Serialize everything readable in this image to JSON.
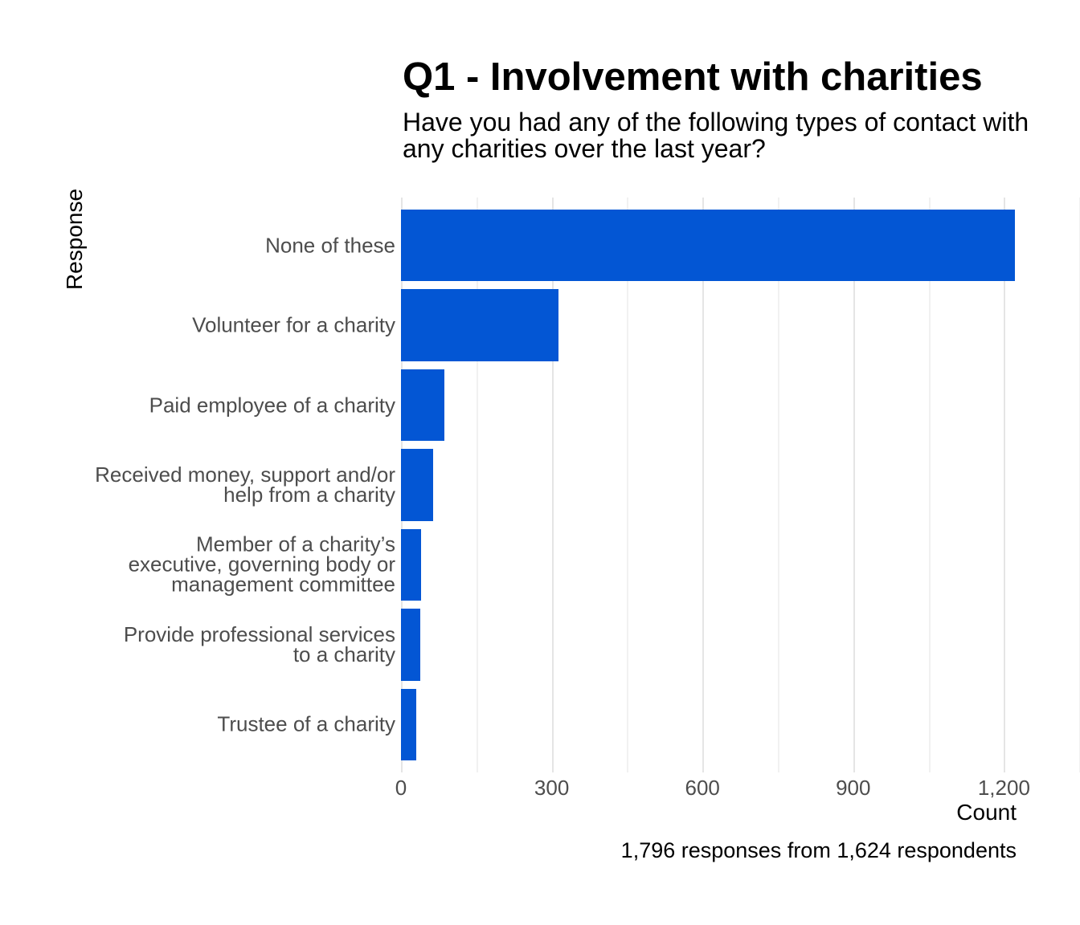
{
  "header": {
    "title": "Q1 - Involvement with charities",
    "subtitle_lines": [
      "Have you had any of the following types of contact with",
      "any charities over the last year?"
    ]
  },
  "chart_data": {
    "type": "bar",
    "orientation": "horizontal",
    "title": "Q1 - Involvement with charities",
    "subtitle": "Have you had any of the following types of contact with any charities over the last year?",
    "xlabel": "Count",
    "ylabel": "Response",
    "caption": "1,796 responses from 1,624 respondents",
    "categories": [
      "None of these",
      "Volunteer for a charity",
      "Paid employee of a charity",
      "Received money, support and/or help from a charity",
      "Member of a charity’s executive, governing body or management committee",
      "Provide professional services to a charity",
      "Trustee of a charity"
    ],
    "categories_lines": [
      [
        "None of these"
      ],
      [
        "Volunteer for a charity"
      ],
      [
        "Paid employee of a charity"
      ],
      [
        "Received money, support and/or",
        "help from a charity"
      ],
      [
        "Member of a charity’s",
        "executive, governing body or",
        "management committee"
      ],
      [
        "Provide professional services",
        "to a charity"
      ],
      [
        "Trustee of a charity"
      ]
    ],
    "values": [
      1222,
      314,
      87,
      64,
      40,
      38,
      31
    ],
    "xlim": [
      0,
      1351
    ],
    "x_major_ticks": [
      0,
      300,
      600,
      900,
      1200
    ],
    "x_tick_labels": [
      "0",
      "300",
      "600",
      "900",
      "1,200"
    ],
    "x_minor_ticks": [
      150,
      450,
      750,
      1050,
      1350
    ],
    "bar_color": "#0356D4",
    "grid": true,
    "legend_position": "none",
    "background": "#FFFFFF",
    "tick_label_color": "#4D4D4D"
  }
}
